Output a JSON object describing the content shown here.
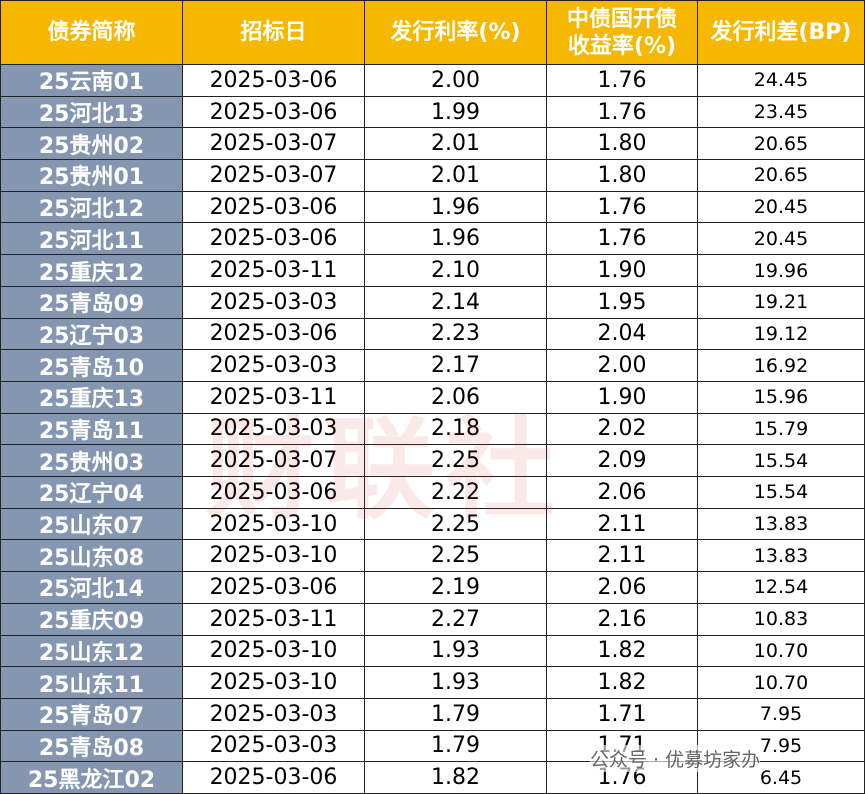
{
  "table": {
    "header": [
      "债券简称",
      "招标日",
      "发行利率(%)",
      [
        "中债国开债",
        "收益率(%)"
      ],
      "发行利差(BP)"
    ],
    "rows": [
      [
        "25云南01",
        "2025-03-06",
        "2.00",
        "1.76",
        "24.45"
      ],
      [
        "25河北13",
        "2025-03-06",
        "1.99",
        "1.76",
        "23.45"
      ],
      [
        "25贵州02",
        "2025-03-07",
        "2.01",
        "1.80",
        "20.65"
      ],
      [
        "25贵州01",
        "2025-03-07",
        "2.01",
        "1.80",
        "20.65"
      ],
      [
        "25河北12",
        "2025-03-06",
        "1.96",
        "1.76",
        "20.45"
      ],
      [
        "25河北11",
        "2025-03-06",
        "1.96",
        "1.76",
        "20.45"
      ],
      [
        "25重庆12",
        "2025-03-11",
        "2.10",
        "1.90",
        "19.96"
      ],
      [
        "25青岛09",
        "2025-03-03",
        "2.14",
        "1.95",
        "19.21"
      ],
      [
        "25辽宁03",
        "2025-03-06",
        "2.23",
        "2.04",
        "19.12"
      ],
      [
        "25青岛10",
        "2025-03-03",
        "2.17",
        "2.00",
        "16.92"
      ],
      [
        "25重庆13",
        "2025-03-11",
        "2.06",
        "1.90",
        "15.96"
      ],
      [
        "25青岛11",
        "2025-03-03",
        "2.18",
        "2.02",
        "15.79"
      ],
      [
        "25贵州03",
        "2025-03-07",
        "2.25",
        "2.09",
        "15.54"
      ],
      [
        "25辽宁04",
        "2025-03-06",
        "2.22",
        "2.06",
        "15.54"
      ],
      [
        "25山东07",
        "2025-03-10",
        "2.25",
        "2.11",
        "13.83"
      ],
      [
        "25山东08",
        "2025-03-10",
        "2.25",
        "2.11",
        "13.83"
      ],
      [
        "25河北14",
        "2025-03-06",
        "2.19",
        "2.06",
        "12.54"
      ],
      [
        "25重庆09",
        "2025-03-11",
        "2.27",
        "2.16",
        "10.83"
      ],
      [
        "25山东12",
        "2025-03-10",
        "1.93",
        "1.82",
        "10.70"
      ],
      [
        "25山东11",
        "2025-03-10",
        "1.93",
        "1.82",
        "10.70"
      ],
      [
        "25青岛07",
        "2025-03-03",
        "1.79",
        "1.71",
        "7.95"
      ],
      [
        "25青岛08",
        "2025-03-03",
        "1.79",
        "1.71",
        "7.95"
      ],
      [
        "25黑龙江02",
        "2025-03-06",
        "1.82",
        "1.76",
        "6.45"
      ]
    ]
  },
  "watermarks": {
    "center": "财联社",
    "corner": "公众号 · 优募坊家办"
  }
}
